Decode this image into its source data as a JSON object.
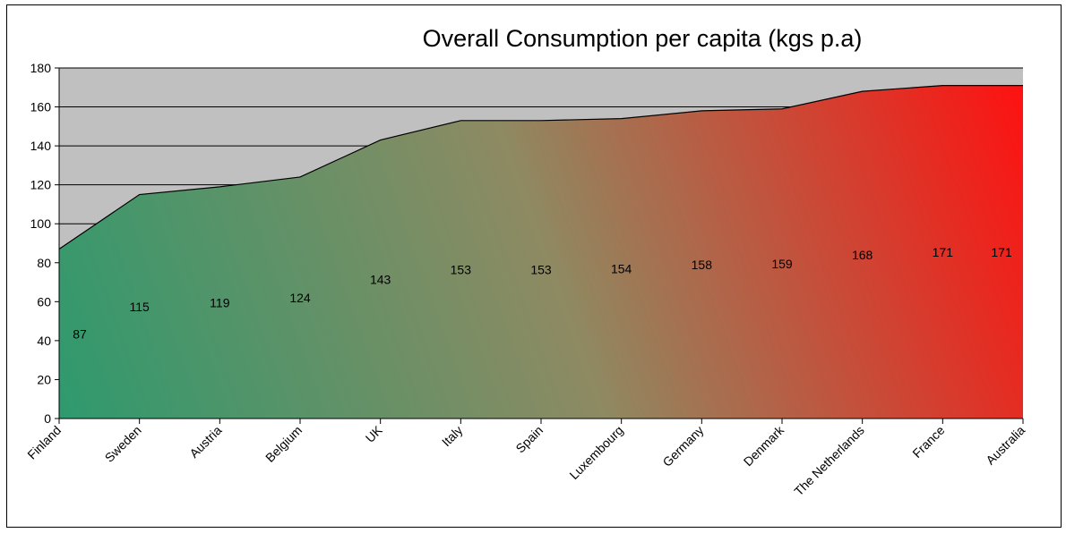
{
  "chart_data": {
    "type": "area",
    "title": "Overall Consumption per capita (kgs p.a)",
    "xlabel": "",
    "ylabel": "",
    "categories": [
      "Finland",
      "Sweden",
      "Austria",
      "Belgium",
      "UK",
      "Italy",
      "Spain",
      "Luxembourg",
      "Germany",
      "Denmark",
      "The Netherlands",
      "France",
      "Australia"
    ],
    "values": [
      87,
      115,
      119,
      124,
      143,
      153,
      153,
      154,
      158,
      159,
      168,
      171,
      171
    ],
    "ylim": [
      0,
      180
    ],
    "yticks": [
      0,
      20,
      40,
      60,
      80,
      100,
      120,
      140,
      160,
      180
    ],
    "grid": true,
    "legend": "none",
    "colors": {
      "plot_background": "#c0c0c0",
      "gradient_start": "#2e9a6e",
      "gradient_mid": "#8e8a62",
      "gradient_end": "#ff1010",
      "line": "#000000",
      "gridline": "#000000"
    }
  }
}
